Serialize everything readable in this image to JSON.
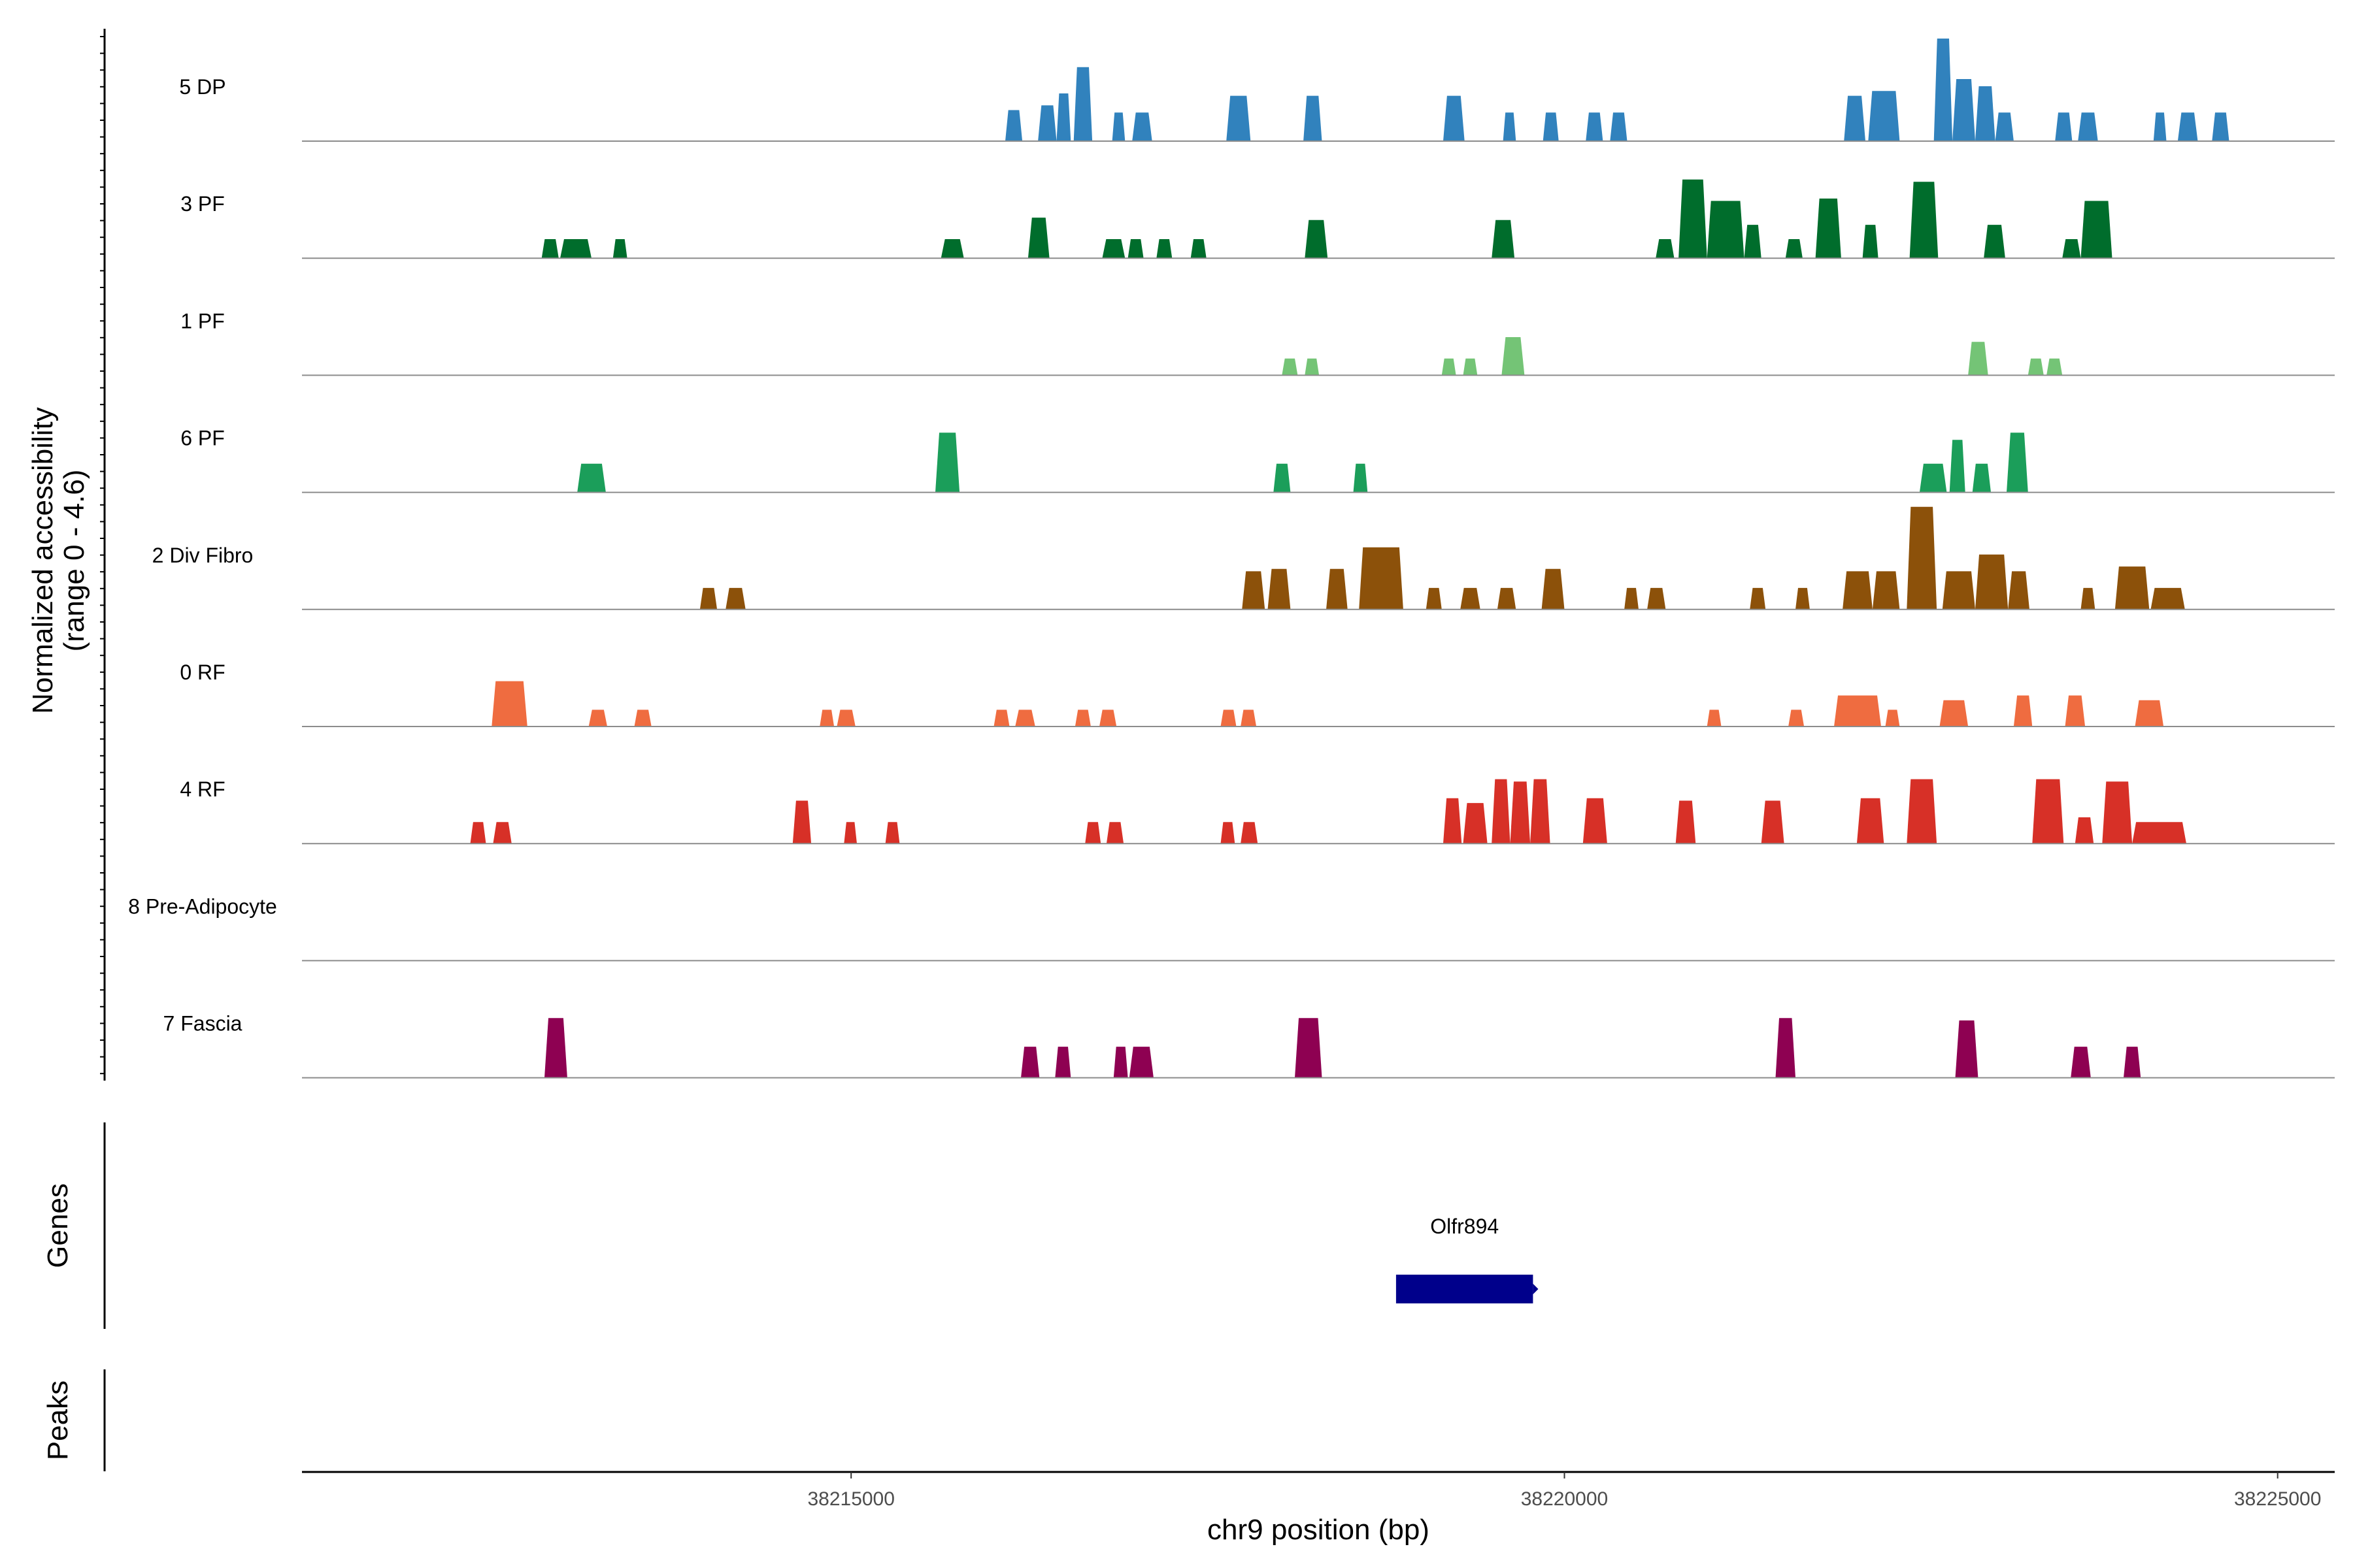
{
  "chart_data": {
    "type": "area",
    "subtype": "genome-browser-coverage-tracks",
    "xlabel": "chr9 position (bp)",
    "ylabel_line1": "Normalized accessibility",
    "ylabel_line2": "(range 0 - 4.6)",
    "genes_label": "Genes",
    "peaks_label": "Peaks",
    "xlim": [
      38211150,
      38225400
    ],
    "ylim": [
      0,
      4.6
    ],
    "x_ticks": [
      38215000,
      38220000,
      38225000
    ],
    "x_tick_labels": [
      "38215000",
      "38220000",
      "38225000"
    ],
    "genes": [
      {
        "name": "Olfr894",
        "start": 38218820,
        "end": 38219780,
        "strand": "+",
        "color": "#00008B"
      }
    ],
    "tracks": [
      {
        "name": "5 DP",
        "color": "#3182BD",
        "peaks": [
          [
            38216080,
            38216200,
            1.3
          ],
          [
            38216310,
            38216440,
            1.5
          ],
          [
            38216440,
            38216540,
            2.0
          ],
          [
            38216560,
            38216690,
            3.1
          ],
          [
            38216830,
            38216920,
            1.2
          ],
          [
            38216970,
            38217110,
            1.2
          ],
          [
            38217630,
            38217800,
            1.9
          ],
          [
            38218170,
            38218300,
            1.9
          ],
          [
            38219150,
            38219300,
            1.9
          ],
          [
            38219570,
            38219660,
            1.2
          ],
          [
            38219850,
            38219960,
            1.2
          ],
          [
            38220150,
            38220270,
            1.2
          ],
          [
            38220320,
            38220440,
            1.2
          ],
          [
            38221960,
            38222110,
            1.9
          ],
          [
            38222130,
            38222350,
            2.1
          ],
          [
            38222590,
            38222720,
            4.3
          ],
          [
            38222720,
            38222880,
            2.6
          ],
          [
            38222880,
            38223020,
            2.3
          ],
          [
            38223020,
            38223150,
            1.2
          ],
          [
            38223440,
            38223560,
            1.2
          ],
          [
            38223600,
            38223740,
            1.2
          ],
          [
            38224130,
            38224220,
            1.2
          ],
          [
            38224300,
            38224440,
            1.2
          ],
          [
            38224540,
            38224660,
            1.2
          ]
        ]
      },
      {
        "name": "3 PF",
        "color": "#006D2C",
        "peaks": [
          [
            38212830,
            38212950,
            0.8
          ],
          [
            38212960,
            38213180,
            0.8
          ],
          [
            38213330,
            38213430,
            0.8
          ],
          [
            38215630,
            38215790,
            0.8
          ],
          [
            38216240,
            38216390,
            1.7
          ],
          [
            38216760,
            38216920,
            0.8
          ],
          [
            38216940,
            38217050,
            0.8
          ],
          [
            38217140,
            38217250,
            0.8
          ],
          [
            38217380,
            38217490,
            0.8
          ],
          [
            38218180,
            38218340,
            1.6
          ],
          [
            38219490,
            38219650,
            1.6
          ],
          [
            38220640,
            38220770,
            0.8
          ],
          [
            38220800,
            38221000,
            3.3
          ],
          [
            38221000,
            38221260,
            2.4
          ],
          [
            38221260,
            38221380,
            1.4
          ],
          [
            38221550,
            38221670,
            0.8
          ],
          [
            38221760,
            38221940,
            2.5
          ],
          [
            38222090,
            38222200,
            1.4
          ],
          [
            38222420,
            38222620,
            3.2
          ],
          [
            38222940,
            38223090,
            1.4
          ],
          [
            38223490,
            38223620,
            0.8
          ],
          [
            38223620,
            38223840,
            2.4
          ]
        ]
      },
      {
        "name": "1 PF",
        "color": "#74C476",
        "peaks": [
          [
            38218020,
            38218130,
            0.7
          ],
          [
            38218180,
            38218280,
            0.7
          ],
          [
            38219140,
            38219240,
            0.7
          ],
          [
            38219290,
            38219390,
            0.7
          ],
          [
            38219560,
            38219720,
            1.6
          ],
          [
            38222830,
            38222970,
            1.4
          ],
          [
            38223250,
            38223360,
            0.7
          ],
          [
            38223380,
            38223490,
            0.7
          ]
        ]
      },
      {
        "name": "6 PF",
        "color": "#1B9E5A",
        "peaks": [
          [
            38213080,
            38213280,
            1.2
          ],
          [
            38215590,
            38215760,
            2.5
          ],
          [
            38217960,
            38218080,
            1.2
          ],
          [
            38218520,
            38218620,
            1.2
          ],
          [
            38222490,
            38222680,
            1.2
          ],
          [
            38222700,
            38222810,
            2.2
          ],
          [
            38222860,
            38222990,
            1.2
          ],
          [
            38223100,
            38223250,
            2.5
          ]
        ]
      },
      {
        "name": "2 Div Fibro",
        "color": "#8C510A",
        "peaks": [
          [
            38213940,
            38214060,
            0.9
          ],
          [
            38214120,
            38214260,
            0.9
          ],
          [
            38217740,
            38217900,
            1.6
          ],
          [
            38217920,
            38218080,
            1.7
          ],
          [
            38218330,
            38218480,
            1.7
          ],
          [
            38218560,
            38218870,
            2.6
          ],
          [
            38219030,
            38219140,
            0.9
          ],
          [
            38219270,
            38219410,
            0.9
          ],
          [
            38219530,
            38219660,
            0.9
          ],
          [
            38219840,
            38220000,
            1.7
          ],
          [
            38220420,
            38220520,
            0.9
          ],
          [
            38220580,
            38220710,
            0.9
          ],
          [
            38221300,
            38221410,
            0.9
          ],
          [
            38221620,
            38221720,
            0.9
          ],
          [
            38221950,
            38222160,
            1.6
          ],
          [
            38222160,
            38222350,
            1.6
          ],
          [
            38222400,
            38222610,
            4.3
          ],
          [
            38222650,
            38222880,
            1.6
          ],
          [
            38222880,
            38223110,
            2.3
          ],
          [
            38223110,
            38223260,
            1.6
          ],
          [
            38223620,
            38223720,
            0.9
          ],
          [
            38223860,
            38224100,
            1.8
          ],
          [
            38224110,
            38224350,
            0.9
          ]
        ]
      },
      {
        "name": "0 RF",
        "color": "#EF6C40",
        "peaks": [
          [
            38212480,
            38212730,
            1.9
          ],
          [
            38213160,
            38213290,
            0.7
          ],
          [
            38213480,
            38213600,
            0.7
          ],
          [
            38214780,
            38214880,
            0.7
          ],
          [
            38214900,
            38215030,
            0.7
          ],
          [
            38216000,
            38216110,
            0.7
          ],
          [
            38216150,
            38216290,
            0.7
          ],
          [
            38216570,
            38216680,
            0.7
          ],
          [
            38216740,
            38216860,
            0.7
          ],
          [
            38217590,
            38217700,
            0.7
          ],
          [
            38217730,
            38217840,
            0.7
          ],
          [
            38221000,
            38221100,
            0.7
          ],
          [
            38221570,
            38221680,
            0.7
          ],
          [
            38221890,
            38222220,
            1.3
          ],
          [
            38222250,
            38222350,
            0.7
          ],
          [
            38222630,
            38222830,
            1.1
          ],
          [
            38223150,
            38223280,
            1.3
          ],
          [
            38223510,
            38223650,
            1.3
          ],
          [
            38224000,
            38224200,
            1.1
          ]
        ]
      },
      {
        "name": "4 RF",
        "color": "#D73027",
        "peaks": [
          [
            38212330,
            38212440,
            0.9
          ],
          [
            38212490,
            38212620,
            0.9
          ],
          [
            38214590,
            38214720,
            1.8
          ],
          [
            38214950,
            38215040,
            0.9
          ],
          [
            38215240,
            38215340,
            0.9
          ],
          [
            38216640,
            38216750,
            0.9
          ],
          [
            38216790,
            38216910,
            0.9
          ],
          [
            38217590,
            38217690,
            0.9
          ],
          [
            38217730,
            38217850,
            0.9
          ],
          [
            38219150,
            38219280,
            1.9
          ],
          [
            38219290,
            38219460,
            1.7
          ],
          [
            38219490,
            38219620,
            2.7
          ],
          [
            38219620,
            38219760,
            2.6
          ],
          [
            38219760,
            38219900,
            2.7
          ],
          [
            38220130,
            38220300,
            1.9
          ],
          [
            38220780,
            38220920,
            1.8
          ],
          [
            38221380,
            38221540,
            1.8
          ],
          [
            38222050,
            38222240,
            1.9
          ],
          [
            38222400,
            38222610,
            2.7
          ],
          [
            38223280,
            38223500,
            2.7
          ],
          [
            38223580,
            38223710,
            1.1
          ],
          [
            38223770,
            38223980,
            2.6
          ],
          [
            38223980,
            38224360,
            0.9
          ]
        ]
      },
      {
        "name": "8 Pre-Adipocyte",
        "color": "#F28E2B",
        "peaks": []
      },
      {
        "name": "7 Fascia",
        "color": "#8E0152",
        "peaks": [
          [
            38212850,
            38213010,
            2.5
          ],
          [
            38216190,
            38216320,
            1.3
          ],
          [
            38216430,
            38216540,
            1.3
          ],
          [
            38216840,
            38216940,
            1.3
          ],
          [
            38216950,
            38217120,
            1.3
          ],
          [
            38218110,
            38218300,
            2.5
          ],
          [
            38221480,
            38221620,
            2.5
          ],
          [
            38222740,
            38222900,
            2.4
          ],
          [
            38223550,
            38223690,
            1.3
          ],
          [
            38223920,
            38224040,
            1.3
          ]
        ]
      }
    ]
  }
}
